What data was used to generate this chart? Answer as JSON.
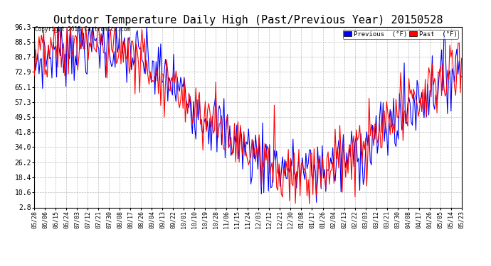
{
  "title": "Outdoor Temperature Daily High (Past/Previous Year) 20150528",
  "copyright": "Copyright 2015 Cartronics.com",
  "legend_previous": "Previous  (°F)",
  "legend_past": "Past  (°F)",
  "color_previous": "#0000ff",
  "color_past": "#ff0000",
  "yticks": [
    2.8,
    10.6,
    18.4,
    26.2,
    34.0,
    41.8,
    49.5,
    57.3,
    65.1,
    72.9,
    80.7,
    88.5,
    96.3
  ],
  "ylim": [
    2.8,
    96.3
  ],
  "background_color": "#ffffff",
  "plot_bg_color": "#ffffff",
  "grid_color": "#aaaaaa",
  "title_fontsize": 11,
  "xlabel_fontsize": 6,
  "ylabel_fontsize": 7,
  "x_labels": [
    "05/28",
    "06/06",
    "06/15",
    "06/24",
    "07/03",
    "07/12",
    "07/21",
    "07/30",
    "08/08",
    "08/17",
    "08/26",
    "09/04",
    "09/13",
    "09/22",
    "10/01",
    "10/10",
    "10/19",
    "10/28",
    "11/06",
    "11/15",
    "11/24",
    "12/03",
    "12/12",
    "12/21",
    "12/30",
    "01/08",
    "01/17",
    "01/26",
    "02/04",
    "02/13",
    "02/22",
    "03/03",
    "03/12",
    "03/21",
    "03/30",
    "04/08",
    "04/17",
    "04/26",
    "05/05",
    "05/14",
    "05/23"
  ],
  "num_points": 366,
  "figwidth": 6.9,
  "figheight": 3.75,
  "dpi": 100
}
